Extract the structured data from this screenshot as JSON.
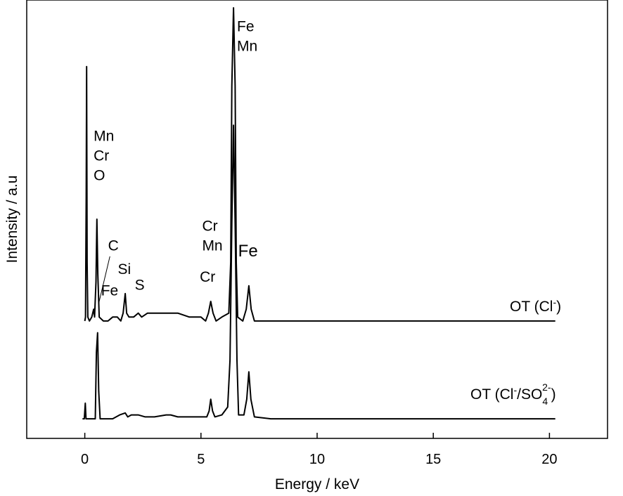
{
  "chart_data": {
    "type": "line",
    "title": "",
    "xlabel": "Energy / keV",
    "ylabel": "Intensity / a.u",
    "xlim": [
      -2.5,
      22.5
    ],
    "xticks": [
      0,
      5,
      10,
      15,
      20
    ],
    "xtick_labels": [
      "0",
      "5",
      "10",
      "15",
      "20"
    ],
    "yticks_shown": false,
    "grid": false,
    "legend": "none",
    "series": [
      {
        "name": "OT (Cl⁻)",
        "label_main": "OT (Cl",
        "label_sup": "-",
        "label_close": ")",
        "baseline": 0.3,
        "color": "#000000",
        "points": [
          [
            0.0,
            0.3
          ],
          [
            0.03,
            0.31
          ],
          [
            0.06,
            0.62
          ],
          [
            0.08,
            0.95
          ],
          [
            0.1,
            0.45
          ],
          [
            0.13,
            0.31
          ],
          [
            0.2,
            0.3
          ],
          [
            0.3,
            0.31
          ],
          [
            0.38,
            0.33
          ],
          [
            0.42,
            0.31
          ],
          [
            0.48,
            0.4
          ],
          [
            0.52,
            0.56
          ],
          [
            0.56,
            0.42
          ],
          [
            0.62,
            0.31
          ],
          [
            0.8,
            0.3
          ],
          [
            1.0,
            0.3
          ],
          [
            1.2,
            0.31
          ],
          [
            1.4,
            0.31
          ],
          [
            1.55,
            0.3
          ],
          [
            1.65,
            0.32
          ],
          [
            1.74,
            0.37
          ],
          [
            1.8,
            0.32
          ],
          [
            1.9,
            0.31
          ],
          [
            2.1,
            0.31
          ],
          [
            2.3,
            0.32
          ],
          [
            2.45,
            0.31
          ],
          [
            2.7,
            0.32
          ],
          [
            3.0,
            0.32
          ],
          [
            3.5,
            0.32
          ],
          [
            4.0,
            0.32
          ],
          [
            4.5,
            0.31
          ],
          [
            5.0,
            0.31
          ],
          [
            5.2,
            0.3
          ],
          [
            5.32,
            0.32
          ],
          [
            5.42,
            0.35
          ],
          [
            5.52,
            0.32
          ],
          [
            5.65,
            0.3
          ],
          [
            5.9,
            0.31
          ],
          [
            6.2,
            0.32
          ],
          [
            6.28,
            0.45
          ],
          [
            6.33,
            0.9
          ],
          [
            6.4,
            1.1
          ],
          [
            6.47,
            0.9
          ],
          [
            6.52,
            0.45
          ],
          [
            6.58,
            0.31
          ],
          [
            6.8,
            0.3
          ],
          [
            6.95,
            0.33
          ],
          [
            7.06,
            0.39
          ],
          [
            7.16,
            0.33
          ],
          [
            7.3,
            0.3
          ],
          [
            8,
            0.3
          ],
          [
            10,
            0.3
          ],
          [
            12,
            0.3
          ],
          [
            14,
            0.3
          ],
          [
            16,
            0.3
          ],
          [
            18,
            0.3
          ],
          [
            20.25,
            0.3
          ]
        ]
      },
      {
        "name": "OT (Cl⁻/SO₄²⁻)",
        "label_main": "OT (Cl",
        "label_sup": "-",
        "label_mid": "/SO",
        "label_sub": "4",
        "label_sup2": "2-",
        "label_close": ")",
        "baseline": 0.05,
        "color": "#000000",
        "points": [
          [
            -0.1,
            0.05
          ],
          [
            -0.02,
            0.05
          ],
          [
            0.02,
            0.09
          ],
          [
            0.05,
            0.05
          ],
          [
            0.08,
            0.05
          ],
          [
            0.3,
            0.05
          ],
          [
            0.45,
            0.05
          ],
          [
            0.5,
            0.22
          ],
          [
            0.55,
            0.27
          ],
          [
            0.6,
            0.12
          ],
          [
            0.66,
            0.05
          ],
          [
            0.9,
            0.05
          ],
          [
            1.2,
            0.05
          ],
          [
            1.5,
            0.06
          ],
          [
            1.74,
            0.065
          ],
          [
            1.85,
            0.055
          ],
          [
            2.0,
            0.06
          ],
          [
            2.3,
            0.06
          ],
          [
            2.6,
            0.055
          ],
          [
            3.0,
            0.055
          ],
          [
            3.5,
            0.06
          ],
          [
            3.7,
            0.06
          ],
          [
            4.0,
            0.055
          ],
          [
            4.5,
            0.055
          ],
          [
            5.0,
            0.055
          ],
          [
            5.25,
            0.055
          ],
          [
            5.35,
            0.07
          ],
          [
            5.42,
            0.1
          ],
          [
            5.5,
            0.07
          ],
          [
            5.6,
            0.055
          ],
          [
            5.9,
            0.06
          ],
          [
            6.15,
            0.08
          ],
          [
            6.25,
            0.2
          ],
          [
            6.33,
            0.55
          ],
          [
            6.4,
            0.8
          ],
          [
            6.47,
            0.55
          ],
          [
            6.55,
            0.2
          ],
          [
            6.62,
            0.06
          ],
          [
            6.85,
            0.06
          ],
          [
            6.97,
            0.1
          ],
          [
            7.06,
            0.17
          ],
          [
            7.15,
            0.1
          ],
          [
            7.3,
            0.055
          ],
          [
            8,
            0.05
          ],
          [
            10,
            0.05
          ],
          [
            12,
            0.05
          ],
          [
            14,
            0.05
          ],
          [
            16,
            0.05
          ],
          [
            18,
            0.05
          ],
          [
            20.25,
            0.05
          ]
        ]
      }
    ],
    "annotations": [
      {
        "text": "Fe",
        "x": 6.55,
        "y": 1.04,
        "size": "normal"
      },
      {
        "text": "Mn",
        "x": 6.55,
        "y": 0.99,
        "size": "normal"
      },
      {
        "text": "Mn",
        "x": 0.38,
        "y": 0.76,
        "size": "normal"
      },
      {
        "text": "Cr",
        "x": 0.38,
        "y": 0.71,
        "size": "normal"
      },
      {
        "text": "O",
        "x": 0.38,
        "y": 0.66,
        "size": "normal"
      },
      {
        "text": "C",
        "x": 1.0,
        "y": 0.48,
        "size": "normal"
      },
      {
        "text": "Si",
        "x": 1.42,
        "y": 0.42,
        "size": "normal"
      },
      {
        "text": "S",
        "x": 2.15,
        "y": 0.38,
        "size": "normal"
      },
      {
        "text": "Fe",
        "x": 0.7,
        "y": 0.365,
        "size": "normal"
      },
      {
        "text": "Cr",
        "x": 5.05,
        "y": 0.53,
        "size": "normal"
      },
      {
        "text": "Mn",
        "x": 5.05,
        "y": 0.48,
        "size": "normal"
      },
      {
        "text": "Fe",
        "x": 6.6,
        "y": 0.465,
        "size": "big"
      },
      {
        "text": "Cr",
        "x": 4.95,
        "y": 0.4,
        "size": "normal"
      }
    ]
  }
}
